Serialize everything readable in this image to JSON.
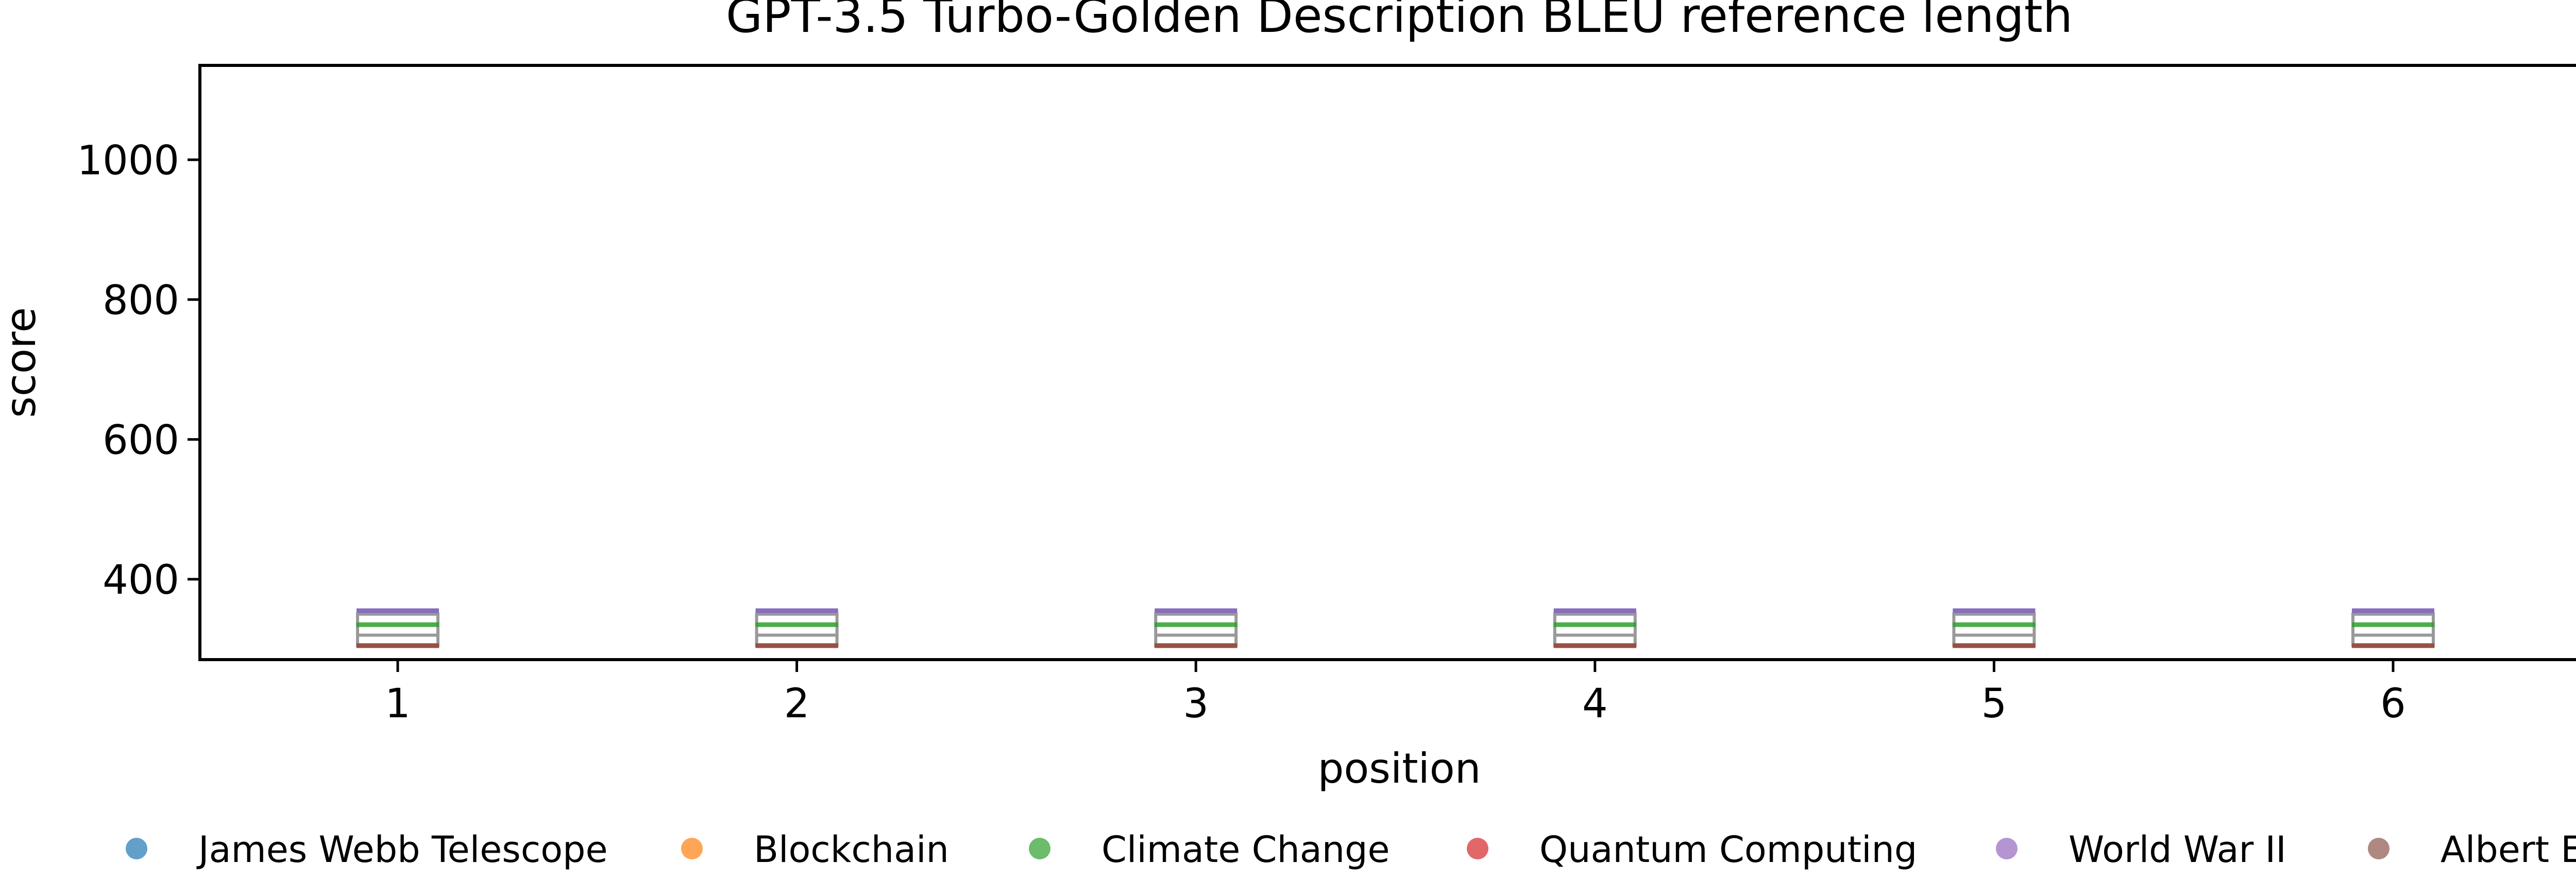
{
  "chart_data": {
    "type": "box",
    "title": "GPT-3.5 Turbo-Golden Description BLEU reference length",
    "xlabel": "position",
    "ylabel": "score",
    "categories": [
      "1",
      "2",
      "3",
      "4",
      "5",
      "6"
    ],
    "ylim": [
      285,
      1135
    ],
    "yticks": [
      400,
      600,
      800,
      1000
    ],
    "grid": false,
    "legend_position": "bottom",
    "box": {
      "color": "#999999",
      "min": 305,
      "q1": 305,
      "median": 320,
      "q3": 350,
      "max": 350
    },
    "series": [
      {
        "name": "James Webb Telescope",
        "color": "#1f77b4",
        "values": [
          355,
          355,
          355,
          355,
          355,
          355
        ]
      },
      {
        "name": "Blockchain",
        "color": "#ff7f0e",
        "values": [
          305,
          305,
          305,
          305,
          305,
          305
        ]
      },
      {
        "name": "Climate Change",
        "color": "#2ca02c",
        "values": [
          335,
          335,
          335,
          335,
          335,
          335
        ]
      },
      {
        "name": "Quantum Computing",
        "color": "#d62728",
        "values": [
          305,
          305,
          305,
          305,
          305,
          305
        ]
      },
      {
        "name": "World War II",
        "color": "#9467bd",
        "values": [
          355,
          355,
          355,
          355,
          355,
          355
        ]
      },
      {
        "name": "Albert Einstein",
        "color": "#8c564b",
        "values": [
          305,
          305,
          305,
          305,
          305,
          305
        ]
      }
    ]
  }
}
